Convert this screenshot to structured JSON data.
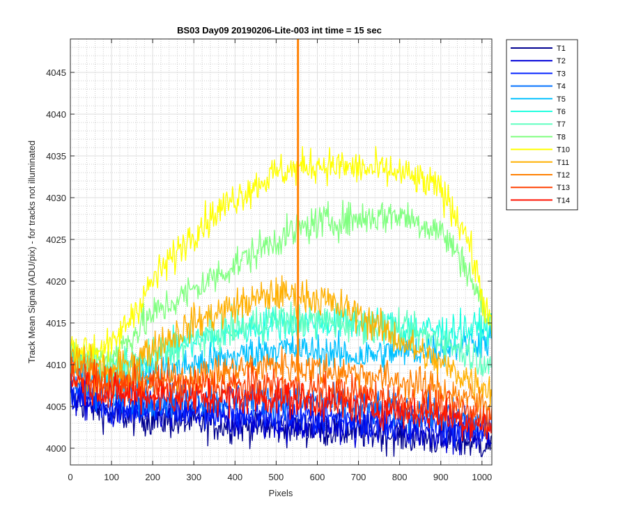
{
  "chart_data": {
    "type": "line",
    "title": "BS03 Day09 20190206-Lite-003 int time = 15 sec",
    "xlabel": "Pixels",
    "ylabel": "Track Mean Signal (ADU/pix) - for tracks not illuminated",
    "xlim": [
      0,
      1024
    ],
    "ylim": [
      3998,
      4049
    ],
    "xticks": [
      0,
      100,
      200,
      300,
      400,
      500,
      600,
      700,
      800,
      900,
      1000
    ],
    "yticks": [
      4000,
      4005,
      4010,
      4015,
      4020,
      4025,
      4030,
      4035,
      4040,
      4045
    ],
    "grid": "on (major and minor)",
    "legend_location": "outside top-right",
    "series": [
      {
        "name": "T1",
        "color": "#00008f",
        "anchors": [
          [
            0,
            4006
          ],
          [
            100,
            4004
          ],
          [
            300,
            4003
          ],
          [
            500,
            4002.5
          ],
          [
            700,
            4002
          ],
          [
            900,
            4001
          ],
          [
            1024,
            4000.5
          ]
        ],
        "noise": 1.5
      },
      {
        "name": "T2",
        "color": "#0000d8",
        "anchors": [
          [
            0,
            4006
          ],
          [
            100,
            4004.5
          ],
          [
            300,
            4004
          ],
          [
            500,
            4003
          ],
          [
            700,
            4002.5
          ],
          [
            900,
            4002
          ],
          [
            1024,
            4001.5
          ]
        ],
        "noise": 1.5
      },
      {
        "name": "T3",
        "color": "#0020ff",
        "anchors": [
          [
            0,
            4007
          ],
          [
            100,
            4005
          ],
          [
            300,
            4004.5
          ],
          [
            500,
            4004
          ],
          [
            700,
            4003.5
          ],
          [
            900,
            4003
          ],
          [
            1024,
            4002
          ]
        ],
        "noise": 1.5
      },
      {
        "name": "T4",
        "color": "#0070ff",
        "anchors": [
          [
            0,
            4008
          ],
          [
            100,
            4006
          ],
          [
            300,
            4006
          ],
          [
            500,
            4006
          ],
          [
            700,
            4005
          ],
          [
            900,
            4004
          ],
          [
            1024,
            4003
          ]
        ],
        "noise": 1.5
      },
      {
        "name": "T5",
        "color": "#00c0ff",
        "anchors": [
          [
            0,
            4010
          ],
          [
            100,
            4008
          ],
          [
            300,
            4010
          ],
          [
            500,
            4012
          ],
          [
            700,
            4011
          ],
          [
            900,
            4012
          ],
          [
            1024,
            4013
          ]
        ],
        "noise": 1.5
      },
      {
        "name": "T6",
        "color": "#20ffdf",
        "anchors": [
          [
            0,
            4011
          ],
          [
            100,
            4009
          ],
          [
            200,
            4011
          ],
          [
            300,
            4013
          ],
          [
            500,
            4015
          ],
          [
            700,
            4015
          ],
          [
            900,
            4014
          ],
          [
            1024,
            4014.5
          ]
        ],
        "noise": 1.5
      },
      {
        "name": "T7",
        "color": "#60ffc0",
        "anchors": [
          [
            0,
            4011
          ],
          [
            100,
            4009
          ],
          [
            200,
            4011
          ],
          [
            300,
            4013
          ],
          [
            500,
            4015.5
          ],
          [
            700,
            4015
          ],
          [
            900,
            4013
          ],
          [
            1024,
            4010
          ]
        ],
        "noise": 1.5
      },
      {
        "name": "T8",
        "color": "#80ff80",
        "anchors": [
          [
            0,
            4011
          ],
          [
            100,
            4011
          ],
          [
            200,
            4016
          ],
          [
            300,
            4019
          ],
          [
            400,
            4022
          ],
          [
            500,
            4025
          ],
          [
            600,
            4027
          ],
          [
            700,
            4027.5
          ],
          [
            800,
            4028
          ],
          [
            900,
            4026
          ],
          [
            960,
            4022
          ],
          [
            1024,
            4014
          ]
        ],
        "noise": 1.5
      },
      {
        "name": "T10",
        "color": "#ffff00",
        "anchors": [
          [
            0,
            4012
          ],
          [
            100,
            4012
          ],
          [
            200,
            4020
          ],
          [
            300,
            4026
          ],
          [
            400,
            4030
          ],
          [
            500,
            4033
          ],
          [
            600,
            4034
          ],
          [
            700,
            4033.5
          ],
          [
            800,
            4033
          ],
          [
            900,
            4031
          ],
          [
            960,
            4026
          ],
          [
            1024,
            4014
          ]
        ],
        "noise": 1.5
      },
      {
        "name": "T11",
        "color": "#ffb000",
        "anchors": [
          [
            0,
            4011
          ],
          [
            100,
            4009
          ],
          [
            200,
            4012
          ],
          [
            300,
            4015
          ],
          [
            400,
            4017
          ],
          [
            500,
            4018.5
          ],
          [
            600,
            4018
          ],
          [
            700,
            4016
          ],
          [
            800,
            4013
          ],
          [
            900,
            4010
          ],
          [
            1024,
            4007
          ]
        ],
        "noise": 1.5
      },
      {
        "name": "T12",
        "color": "#ff8000",
        "anchors": [
          [
            0,
            4010
          ],
          [
            100,
            4008
          ],
          [
            300,
            4008.5
          ],
          [
            500,
            4010
          ],
          [
            700,
            4009
          ],
          [
            900,
            4007
          ],
          [
            1024,
            4005
          ]
        ],
        "noise": 1.5
      },
      {
        "name": "T13",
        "color": "#ff4000",
        "anchors": [
          [
            0,
            4009
          ],
          [
            100,
            4007.5
          ],
          [
            300,
            4007.5
          ],
          [
            500,
            4007.5
          ],
          [
            700,
            4006.5
          ],
          [
            900,
            4005
          ],
          [
            1024,
            4003.5
          ]
        ],
        "noise": 1.5
      },
      {
        "name": "T14",
        "color": "#ff1000",
        "anchors": [
          [
            0,
            4008.5
          ],
          [
            100,
            4006.5
          ],
          [
            300,
            4006
          ],
          [
            500,
            4006
          ],
          [
            700,
            4005
          ],
          [
            900,
            4004
          ],
          [
            1024,
            4002.5
          ]
        ],
        "noise": 1.5
      }
    ],
    "annotations": [
      {
        "type": "spike",
        "series": "T12",
        "x": 553,
        "from": 4008,
        "to": 4049
      }
    ]
  }
}
